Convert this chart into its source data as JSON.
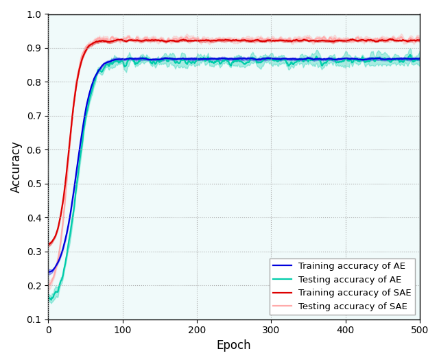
{
  "title": "",
  "xlabel": "Epoch",
  "ylabel": "Accuracy",
  "xlim": [
    0,
    500
  ],
  "ylim": [
    0.1,
    1.0
  ],
  "yticks": [
    0.1,
    0.2,
    0.3,
    0.4,
    0.5,
    0.6,
    0.7,
    0.8,
    0.9,
    1.0
  ],
  "xticks": [
    0,
    100,
    200,
    300,
    400,
    500
  ],
  "num_epochs": 500,
  "ae_train_color": "#0000dd",
  "ae_test_color": "#00ccaa",
  "sae_train_color": "#dd0000",
  "sae_test_color": "#ffaaaa",
  "ae_train_label": "Training accuracy of AE",
  "ae_test_label": "Testing accuracy of AE",
  "sae_train_label": "Training accuracy of SAE",
  "sae_test_label": "Testing accuracy of SAE",
  "linewidth": 1.6,
  "band_alpha": 0.3,
  "grid_color": "#aaaaaa",
  "grid_linestyle": "dotted",
  "background_color": "#f0fafa",
  "legend_loc": "lower right"
}
